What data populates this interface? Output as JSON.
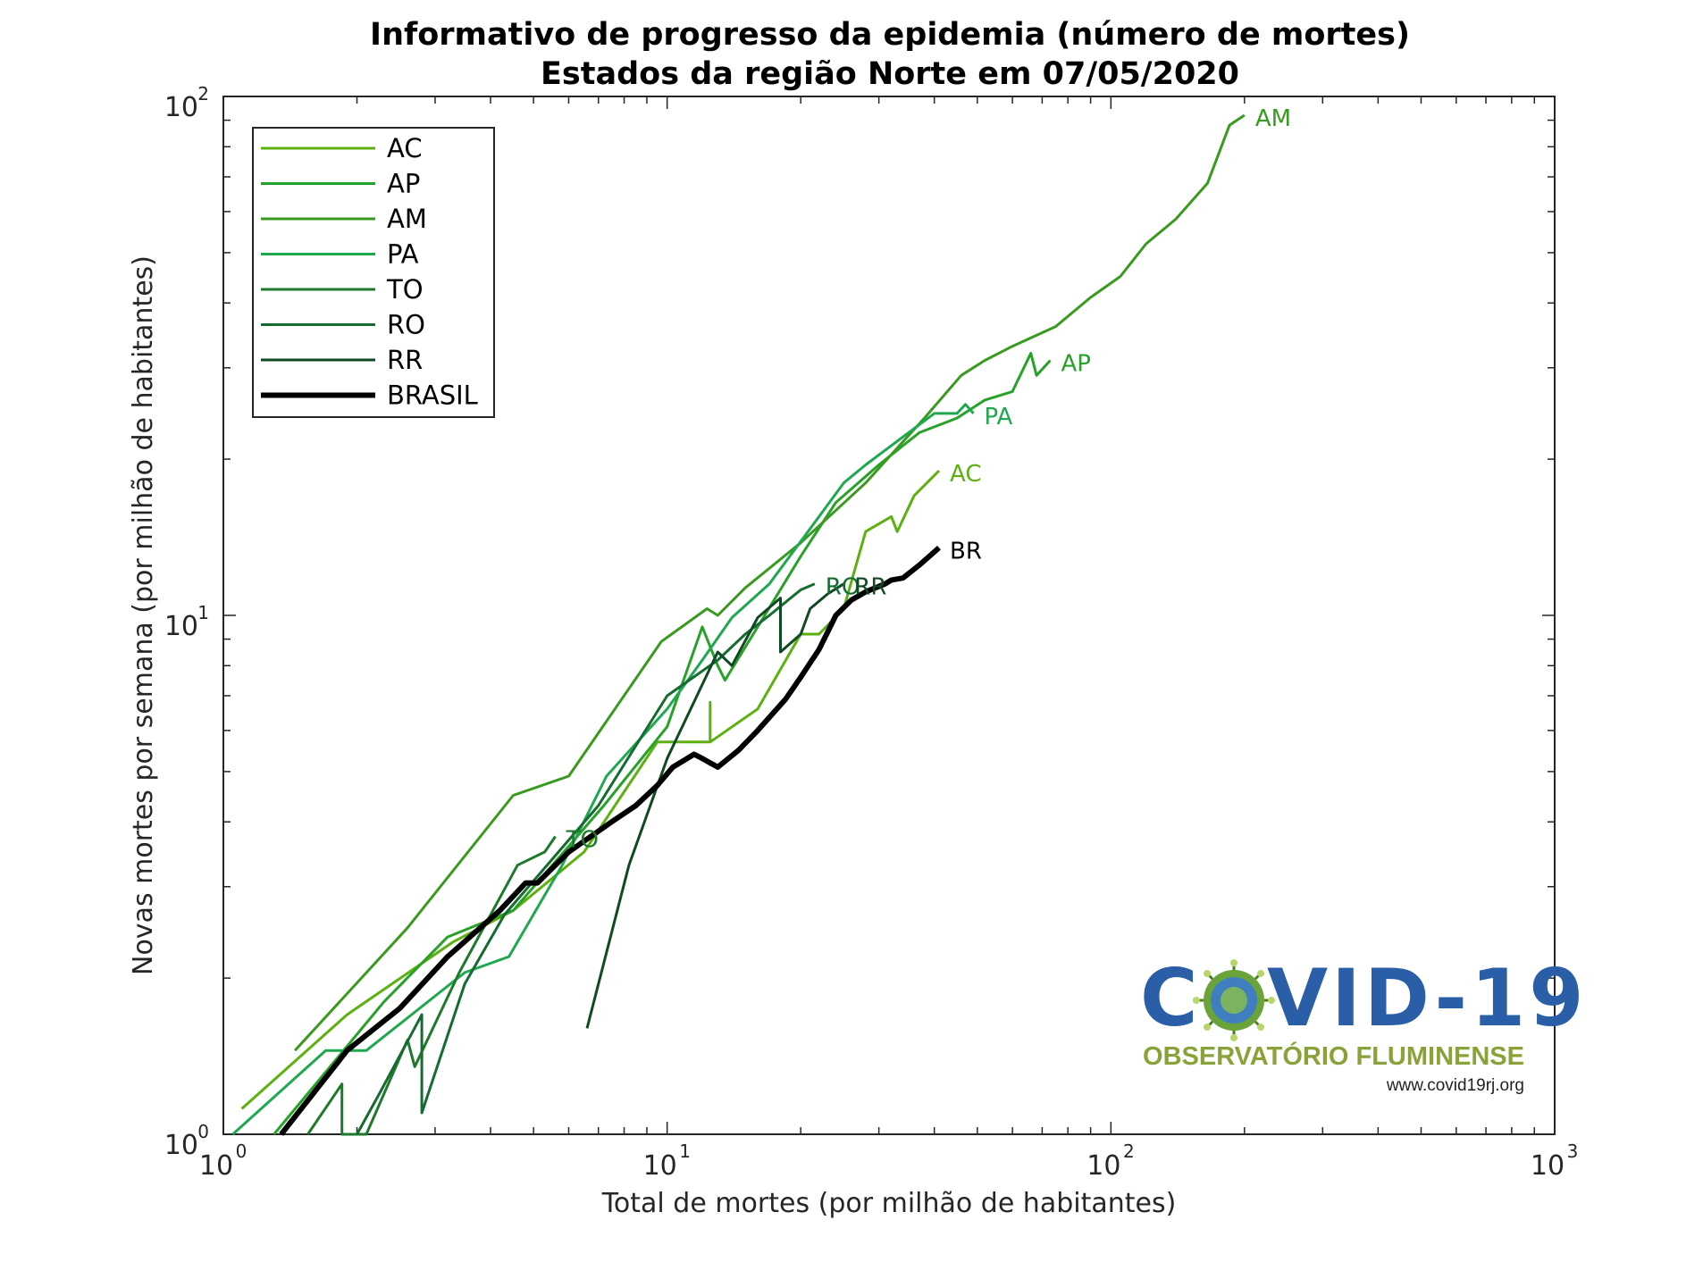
{
  "chart_data": {
    "type": "line",
    "title": "Informativo de progresso da epidemia (número de mortes)",
    "subtitle": "Estados da região Norte em 07/05/2020",
    "xlabel": "Total de mortes (por milhão de habitantes)",
    "ylabel": "Novas mortes por semana (por milhão de habitantes)",
    "xscale": "log",
    "yscale": "log",
    "xlim": [
      1,
      1000
    ],
    "ylim": [
      1,
      100
    ],
    "x_ticks": [
      {
        "base": "10",
        "exp": "0",
        "value": 1
      },
      {
        "base": "10",
        "exp": "1",
        "value": 10
      },
      {
        "base": "10",
        "exp": "2",
        "value": 100
      },
      {
        "base": "10",
        "exp": "3",
        "value": 1000
      }
    ],
    "y_ticks": [
      {
        "base": "10",
        "exp": "0",
        "value": 1
      },
      {
        "base": "10",
        "exp": "1",
        "value": 10
      },
      {
        "base": "10",
        "exp": "2",
        "value": 100
      }
    ],
    "grid": false,
    "legend_position": "top-left",
    "series": [
      {
        "name": "AC",
        "end_label": "AC",
        "color": "#5cb010",
        "width": 3,
        "points": [
          [
            1.1,
            1.12
          ],
          [
            1.9,
            1.7
          ],
          [
            3.3,
            2.35
          ],
          [
            4.5,
            2.7
          ],
          [
            6.5,
            3.5
          ],
          [
            9.5,
            5.7
          ],
          [
            12.5,
            5.7
          ],
          [
            12.5,
            6.8
          ],
          [
            12.5,
            5.7
          ],
          [
            16,
            6.6
          ],
          [
            20,
            9.2
          ],
          [
            22,
            9.2
          ],
          [
            22,
            9.2
          ],
          [
            25,
            10.3
          ],
          [
            28,
            14.5
          ],
          [
            32,
            15.5
          ],
          [
            33,
            14.5
          ],
          [
            36,
            17
          ],
          [
            41,
            19
          ]
        ]
      },
      {
        "name": "AP",
        "end_label": "AP",
        "color": "#27a127",
        "width": 3,
        "points": [
          [
            1.3,
            1.0
          ],
          [
            2.3,
            1.8
          ],
          [
            3.2,
            2.4
          ],
          [
            4.5,
            2.7
          ],
          [
            7.2,
            4.3
          ],
          [
            10,
            6.1
          ],
          [
            12,
            9.5
          ],
          [
            13,
            8.0
          ],
          [
            13.5,
            7.5
          ],
          [
            16,
            9.5
          ],
          [
            20,
            13
          ],
          [
            24,
            16.5
          ],
          [
            30,
            19.5
          ],
          [
            37,
            22.5
          ],
          [
            45,
            24
          ],
          [
            52,
            26
          ],
          [
            60,
            27
          ],
          [
            66,
            32
          ],
          [
            68,
            29
          ],
          [
            73,
            31
          ]
        ]
      },
      {
        "name": "AM",
        "end_label": "AM",
        "color": "#3a9a20",
        "width": 3,
        "points": [
          [
            1.45,
            1.45
          ],
          [
            2.6,
            2.5
          ],
          [
            4.5,
            4.5
          ],
          [
            6,
            4.9
          ],
          [
            9.7,
            8.9
          ],
          [
            12.3,
            10.3
          ],
          [
            13,
            10.0
          ],
          [
            15,
            11.3
          ],
          [
            20,
            13.8
          ],
          [
            28,
            18
          ],
          [
            38,
            24
          ],
          [
            46,
            29
          ],
          [
            52,
            31
          ],
          [
            60,
            33
          ],
          [
            75,
            36
          ],
          [
            90,
            41
          ],
          [
            105,
            45
          ],
          [
            120,
            52
          ],
          [
            140,
            58
          ],
          [
            165,
            68
          ],
          [
            185,
            88
          ],
          [
            200,
            92
          ]
        ]
      },
      {
        "name": "PA",
        "end_label": "PA",
        "color": "#1fa84f",
        "width": 3,
        "points": [
          [
            1.05,
            1.0
          ],
          [
            1.7,
            1.45
          ],
          [
            2.1,
            1.45
          ],
          [
            3.5,
            2.05
          ],
          [
            4.4,
            2.2
          ],
          [
            5.8,
            3.3
          ],
          [
            7.3,
            4.9
          ],
          [
            10,
            6.6
          ],
          [
            12,
            8.2
          ],
          [
            14,
            9.9
          ],
          [
            17,
            11.5
          ],
          [
            22,
            15.5
          ],
          [
            25,
            18
          ],
          [
            28,
            19.5
          ],
          [
            35,
            22.5
          ],
          [
            40,
            24.5
          ],
          [
            45,
            24.5
          ],
          [
            47,
            25.5
          ],
          [
            49,
            24.5
          ]
        ]
      },
      {
        "name": "TO",
        "end_label": "TO",
        "color": "#1e7a2a",
        "width": 3,
        "points": [
          [
            1.55,
            1.0
          ],
          [
            1.85,
            1.25
          ],
          [
            1.85,
            1.0
          ],
          [
            2.1,
            1.0
          ],
          [
            2.6,
            1.52
          ],
          [
            2.7,
            1.35
          ],
          [
            3.4,
            2.05
          ],
          [
            4.6,
            3.3
          ],
          [
            5.3,
            3.5
          ],
          [
            5.6,
            3.75
          ]
        ]
      },
      {
        "name": "RO",
        "end_label": "RO",
        "color": "#156b30",
        "width": 3,
        "points": [
          [
            2.0,
            1.0
          ],
          [
            2.25,
            1.2
          ],
          [
            2.8,
            1.7
          ],
          [
            2.8,
            1.1
          ],
          [
            3.5,
            1.95
          ],
          [
            4.3,
            2.65
          ],
          [
            7,
            4.3
          ],
          [
            10,
            7.0
          ],
          [
            13,
            8.2
          ],
          [
            15,
            9.2
          ],
          [
            17,
            10.0
          ],
          [
            20,
            11.2
          ],
          [
            21.5,
            11.5
          ]
        ]
      },
      {
        "name": "RR",
        "end_label": "RR",
        "color": "#0f4a22",
        "width": 3,
        "points": [
          [
            6.6,
            1.6
          ],
          [
            8.2,
            3.3
          ],
          [
            10,
            5.3
          ],
          [
            13,
            8.5
          ],
          [
            14,
            8.0
          ],
          [
            16,
            9.9
          ],
          [
            18,
            10.8
          ],
          [
            18,
            8.5
          ],
          [
            20,
            9.2
          ],
          [
            21,
            10.3
          ],
          [
            23,
            11.0
          ],
          [
            25,
            11.5
          ]
        ]
      },
      {
        "name": "BRASIL",
        "end_label": "BR",
        "color": "#000000",
        "width": 6,
        "points": [
          [
            1.35,
            1.0
          ],
          [
            1.9,
            1.45
          ],
          [
            2.5,
            1.75
          ],
          [
            3.2,
            2.2
          ],
          [
            4.2,
            2.7
          ],
          [
            4.8,
            3.05
          ],
          [
            5.1,
            3.05
          ],
          [
            6,
            3.5
          ],
          [
            7.5,
            4.0
          ],
          [
            8.5,
            4.3
          ],
          [
            9.5,
            4.7
          ],
          [
            10.3,
            5.1
          ],
          [
            11.5,
            5.4
          ],
          [
            12,
            5.3
          ],
          [
            13,
            5.1
          ],
          [
            14.5,
            5.5
          ],
          [
            16,
            6.0
          ],
          [
            18.5,
            6.9
          ],
          [
            20,
            7.6
          ],
          [
            22,
            8.6
          ],
          [
            24,
            10.0
          ],
          [
            26,
            10.7
          ],
          [
            28,
            11.1
          ],
          [
            31,
            11.5
          ],
          [
            32,
            11.7
          ],
          [
            34,
            11.8
          ],
          [
            37,
            12.5
          ],
          [
            41,
            13.5
          ]
        ]
      }
    ]
  },
  "logo": {
    "main_part1": "C",
    "main_part2": "VID-19",
    "subtitle": "OBSERVATÓRIO FLUMINENSE",
    "url": "www.covid19rj.org"
  }
}
